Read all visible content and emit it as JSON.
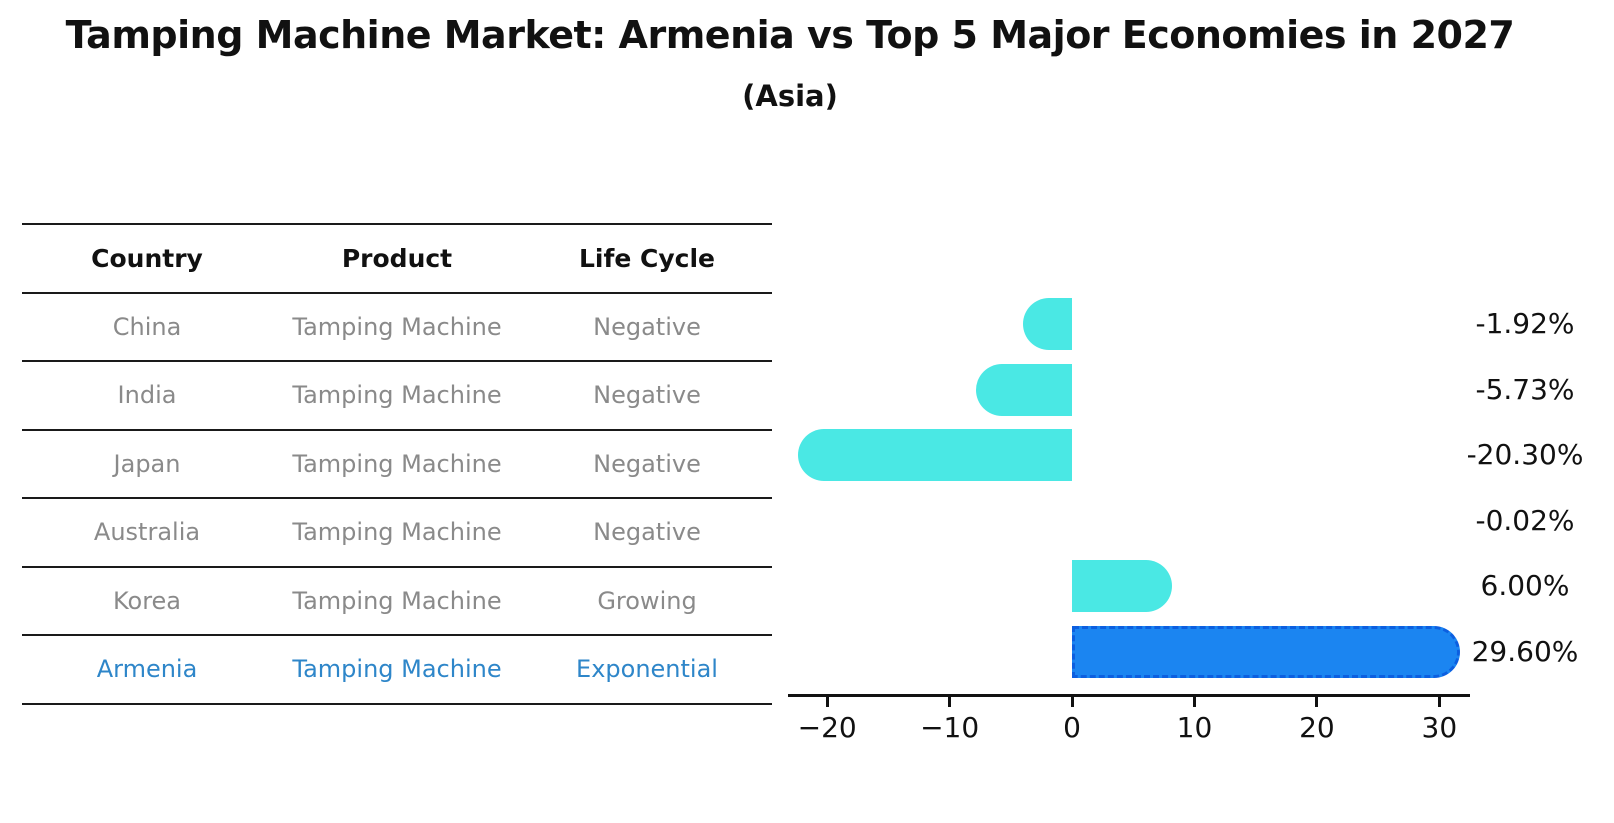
{
  "title": "Tamping Machine Market: Armenia vs Top 5 Major Economies in 2027",
  "subtitle": "(Asia)",
  "table": {
    "headers": [
      "Country",
      "Product",
      "Life Cycle"
    ],
    "rows": [
      {
        "country": "China",
        "product": "Tamping Machine",
        "life_cycle": "Negative",
        "highlight": false
      },
      {
        "country": "India",
        "product": "Tamping Machine",
        "life_cycle": "Negative",
        "highlight": false
      },
      {
        "country": "Japan",
        "product": "Tamping Machine",
        "life_cycle": "Negative",
        "highlight": false
      },
      {
        "country": "Australia",
        "product": "Tamping Machine",
        "life_cycle": "Negative",
        "highlight": false
      },
      {
        "country": "Korea",
        "product": "Tamping Machine",
        "life_cycle": "Growing",
        "highlight": false
      },
      {
        "country": "Armenia",
        "product": "Tamping Machine",
        "life_cycle": "Exponential",
        "highlight": true
      }
    ]
  },
  "chart_data": {
    "type": "bar",
    "orientation": "horizontal",
    "title": "Tamping Machine Market: Armenia vs Top 5 Major Economies in 2027 (Asia)",
    "categories": [
      "China",
      "India",
      "Japan",
      "Australia",
      "Korea",
      "Armenia"
    ],
    "values": [
      -1.92,
      -5.73,
      -20.3,
      -0.02,
      6.0,
      29.6
    ],
    "value_labels": [
      "-1.92%",
      "-5.73%",
      "-20.30%",
      "-0.02%",
      "6.00%",
      "29.60%"
    ],
    "x_ticks": [
      -20,
      -10,
      0,
      10,
      20,
      30
    ],
    "xlim": [
      -23.2,
      32.5
    ],
    "grid": false,
    "legend": false,
    "highlight_index": 5,
    "bar_color": "#4AE8E4",
    "highlight_color": "#1B85F1",
    "highlight_border_color": "#0C5FE0"
  },
  "colors": {
    "background": "#FFFFFF",
    "text": "#111111",
    "muted_text": "#8A8A8A",
    "highlight_text": "#2E86C9",
    "table_line": "#1A1A1A"
  }
}
